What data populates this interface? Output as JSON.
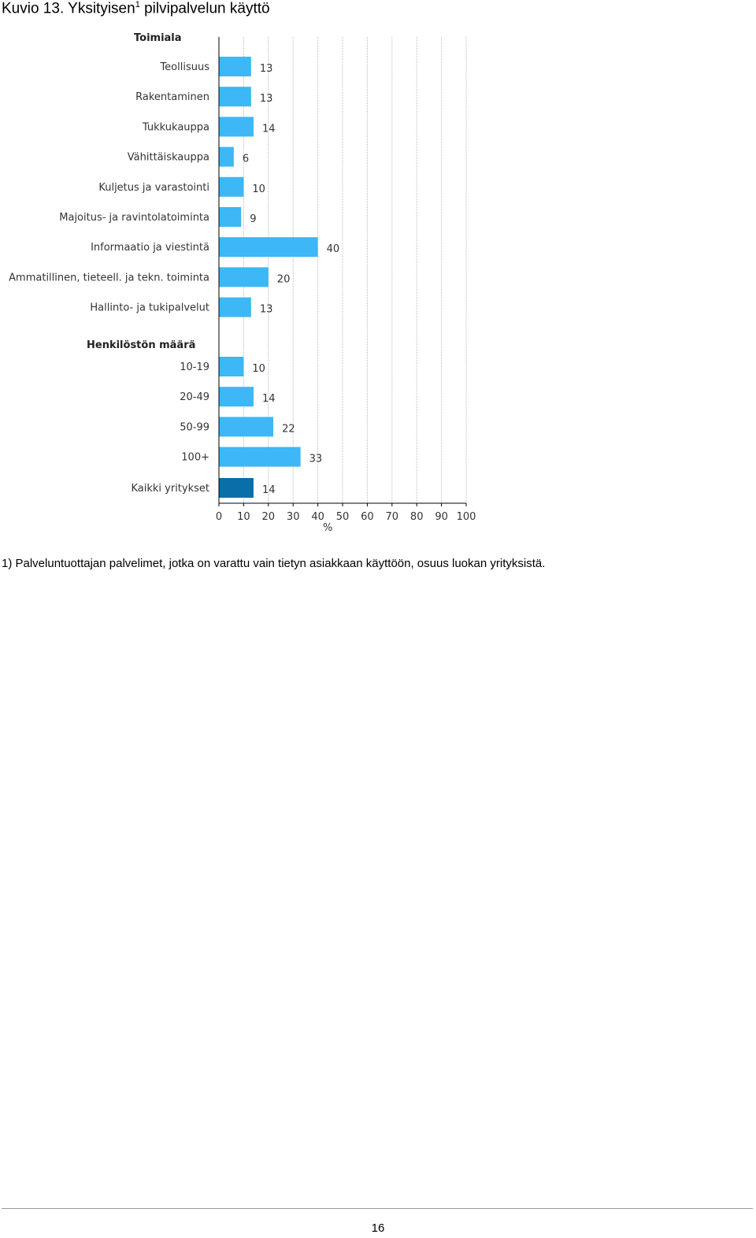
{
  "page": {
    "title_main": "Kuvio 13. Yksityisen",
    "title_sup": "1",
    "title_rest": " pilvipalvelun käyttö",
    "footnote": "1) Palveluntuottajan palvelimet, jotka on varattu vain tietyn asiakkaan käyttöön, osuus luokan yrityksistä.",
    "page_number": "16"
  },
  "colors": {
    "bar": "#3DB7F5",
    "bar_total": "#0A6EA8",
    "grid": "#b8b8b8",
    "axis": "#000000"
  },
  "chart_data": {
    "type": "bar",
    "orientation": "horizontal",
    "xlabel": "%",
    "xlim": [
      0,
      100
    ],
    "xticks": [
      "0",
      "10",
      "20",
      "30",
      "40",
      "50",
      "60",
      "70",
      "80",
      "90",
      "100"
    ],
    "grid": true,
    "groups": [
      {
        "heading": "Toimiala",
        "categories": [
          "Teollisuus",
          "Rakentaminen",
          "Tukkukauppa",
          "Vähittäiskauppa",
          "Kuljetus ja varastointi",
          "Majoitus- ja ravintolatoiminta",
          "Informaatio ja viestintä",
          "Ammatillinen, tieteell. ja tekn. toiminta",
          "Hallinto- ja tukipalvelut"
        ],
        "values": [
          13,
          13,
          14,
          6,
          10,
          9,
          40,
          20,
          13
        ]
      },
      {
        "heading": "Henkilöstön määrä",
        "categories": [
          "10-19",
          "20-49",
          "50-99",
          "100+"
        ],
        "values": [
          10,
          14,
          22,
          33
        ]
      },
      {
        "heading": "",
        "categories": [
          "Kaikki yritykset"
        ],
        "values": [
          14
        ],
        "highlight": true
      }
    ]
  }
}
